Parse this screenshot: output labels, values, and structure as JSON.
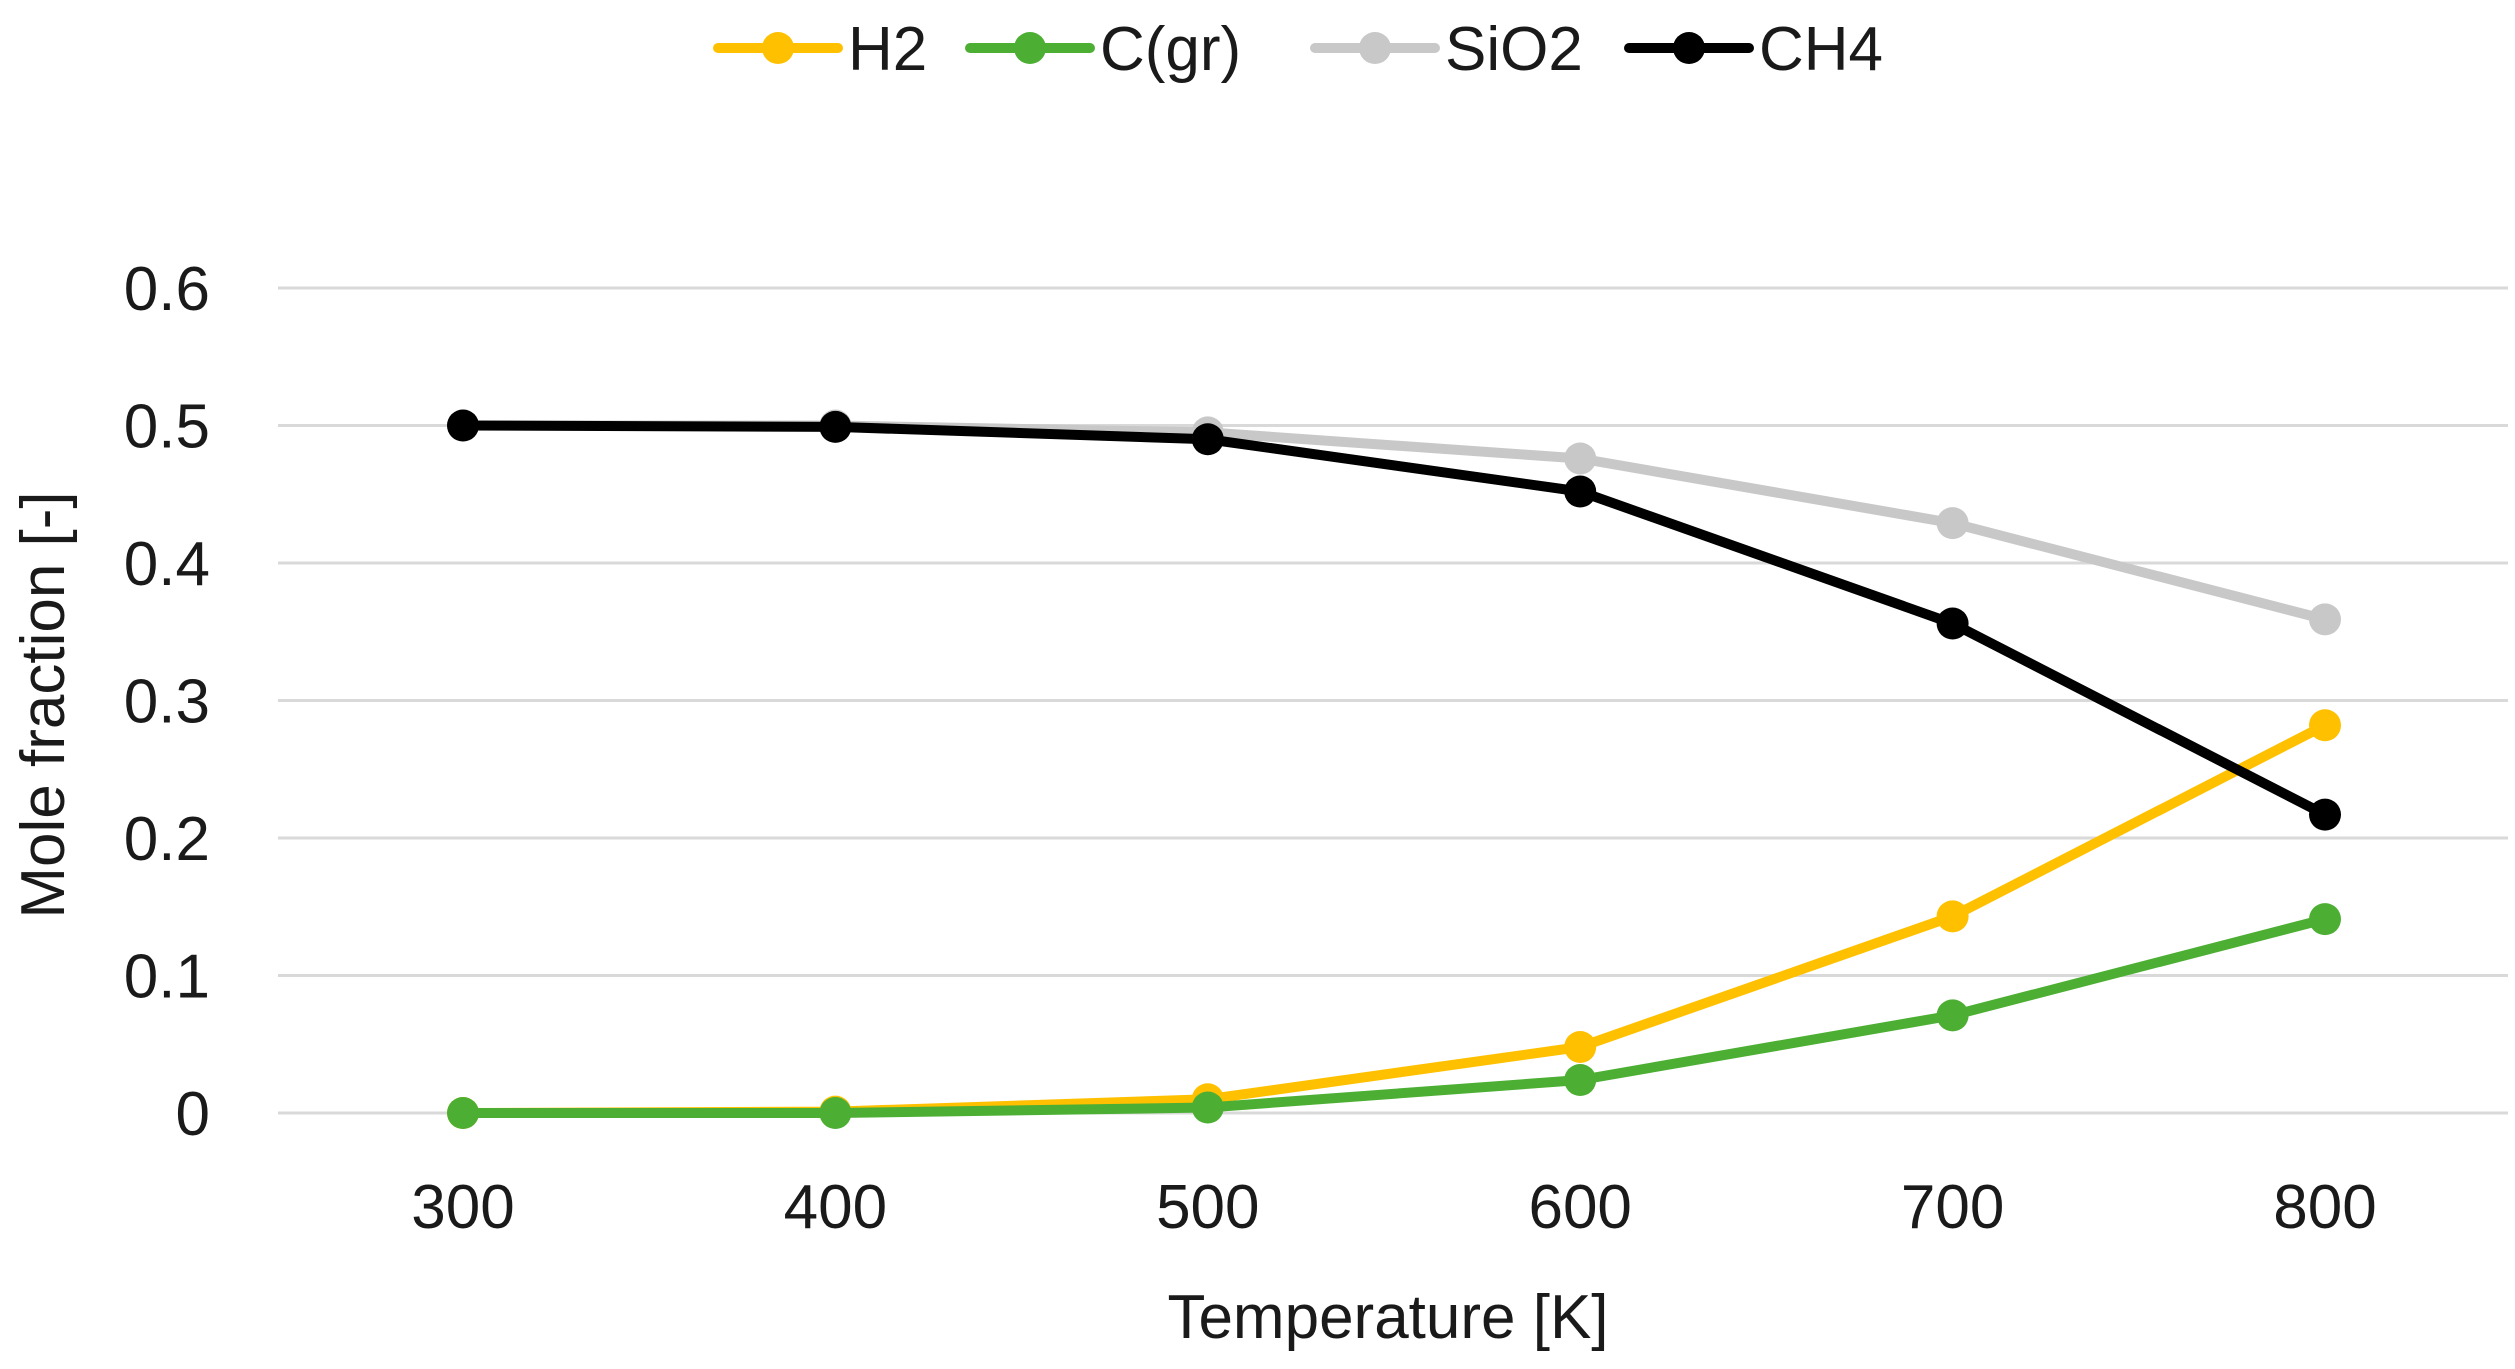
{
  "chart_data": {
    "type": "line",
    "title": "",
    "xlabel": "Temperature [K]",
    "ylabel": "Mole fraction [-]",
    "x": [
      300,
      400,
      500,
      600,
      700,
      800
    ],
    "x_tick_labels": [
      "300",
      "400",
      "500",
      "600",
      "700",
      "800"
    ],
    "ylim": [
      0,
      0.6
    ],
    "y_ticks": [
      0,
      0.1,
      0.2,
      0.3,
      0.4,
      0.5,
      0.6
    ],
    "y_tick_labels": [
      "0",
      "0.1",
      "0.2",
      "0.3",
      "0.4",
      "0.5",
      "0.6"
    ],
    "grid": "horizontal",
    "legend_position": "top-center",
    "series": [
      {
        "name": "H2",
        "color": "#FFC000",
        "values": [
          0.0,
          0.001,
          0.01,
          0.048,
          0.143,
          0.282
        ]
      },
      {
        "name": "C(gr)",
        "color": "#4CAF33",
        "values": [
          0.0,
          0.0,
          0.004,
          0.024,
          0.071,
          0.141
        ]
      },
      {
        "name": "SiO2",
        "color": "#C8C8C8",
        "values": [
          0.5,
          0.5,
          0.495,
          0.476,
          0.429,
          0.359
        ]
      },
      {
        "name": "CH4",
        "color": "#000000",
        "values": [
          0.5,
          0.499,
          0.49,
          0.452,
          0.356,
          0.217
        ]
      }
    ]
  }
}
